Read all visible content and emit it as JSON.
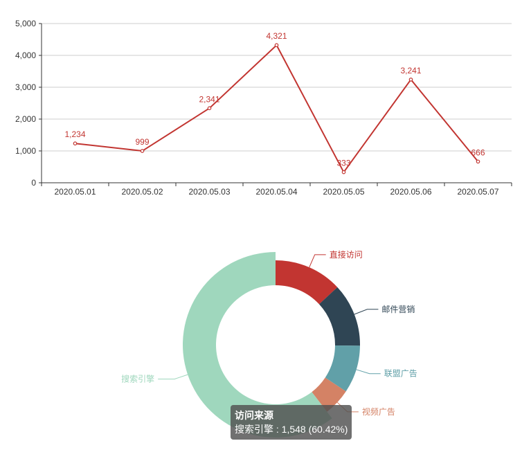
{
  "chart_data": [
    {
      "type": "line",
      "categories": [
        "2020.05.01",
        "2020.05.02",
        "2020.05.03",
        "2020.05.04",
        "2020.05.05",
        "2020.05.06",
        "2020.05.07"
      ],
      "values": [
        1234,
        999,
        2341,
        4321,
        333,
        3241,
        666
      ],
      "value_labels": [
        "1,234",
        "999",
        "2,341",
        "4,321",
        "333",
        "3,241",
        "666"
      ],
      "ylim": [
        0,
        5000
      ],
      "yticks": [
        0,
        1000,
        2000,
        3000,
        4000,
        5000
      ],
      "ytick_labels": [
        "0",
        "1,000",
        "2,000",
        "3,000",
        "4,000",
        "5,000"
      ],
      "grid": true,
      "color": "#c23531"
    },
    {
      "type": "pie",
      "style": "donut",
      "slices": [
        {
          "name": "直接访问",
          "value": 335,
          "color": "#c23531"
        },
        {
          "name": "邮件营销",
          "value": 310,
          "color": "#2f4554"
        },
        {
          "name": "联盟广告",
          "value": 234,
          "color": "#61a0a8"
        },
        {
          "name": "视频广告",
          "value": 135,
          "color": "#d48265"
        },
        {
          "name": "搜索引擎",
          "value": 1548,
          "color": "#9fd7bd"
        }
      ]
    }
  ],
  "tooltip": {
    "title": "访问来源",
    "line": "搜索引擎 : 1,548 (60.42%)"
  }
}
